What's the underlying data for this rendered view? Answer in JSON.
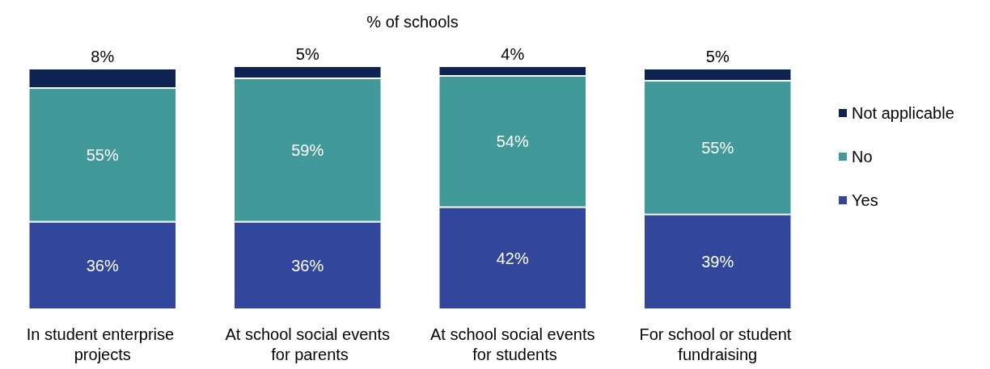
{
  "chart_data": {
    "type": "bar",
    "title": "% of schools",
    "stacked": true,
    "legend": "right",
    "categories": [
      "In student enterprise projects",
      "At school social events for parents",
      "At school social events for students",
      "For school or student fundraising"
    ],
    "series": [
      {
        "name": "Yes",
        "color": "#32469b",
        "values": [
          36,
          36,
          42,
          39
        ],
        "value_labels": [
          "36%",
          "36%",
          "42%",
          "39%"
        ]
      },
      {
        "name": "No",
        "color": "#41999a",
        "values": [
          55,
          59,
          54,
          55
        ],
        "value_labels": [
          "55%",
          "59%",
          "54%",
          "55%"
        ]
      },
      {
        "name": "Not applicable",
        "color": "#0e2352",
        "values": [
          8,
          5,
          4,
          5
        ],
        "value_labels": [
          "8%",
          "5%",
          "4%",
          "5%"
        ]
      }
    ]
  }
}
